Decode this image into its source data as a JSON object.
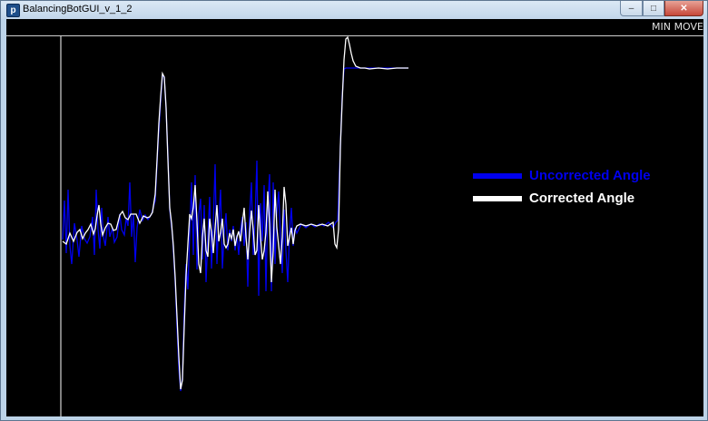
{
  "window": {
    "title": "BalancingBotGUI_v_1_2",
    "icon_letter": "p"
  },
  "controls": {
    "min_label": "MIN",
    "move_label": "MOVE"
  },
  "legend": [
    {
      "label": "Uncorrected Angle",
      "color": "#0000ee"
    },
    {
      "label": "Corrected Angle",
      "color": "#ffffff"
    }
  ],
  "colors": {
    "background": "#000000",
    "uncorrected": "#0000ee",
    "corrected": "#ffffff",
    "axis": "#ffffff"
  }
}
